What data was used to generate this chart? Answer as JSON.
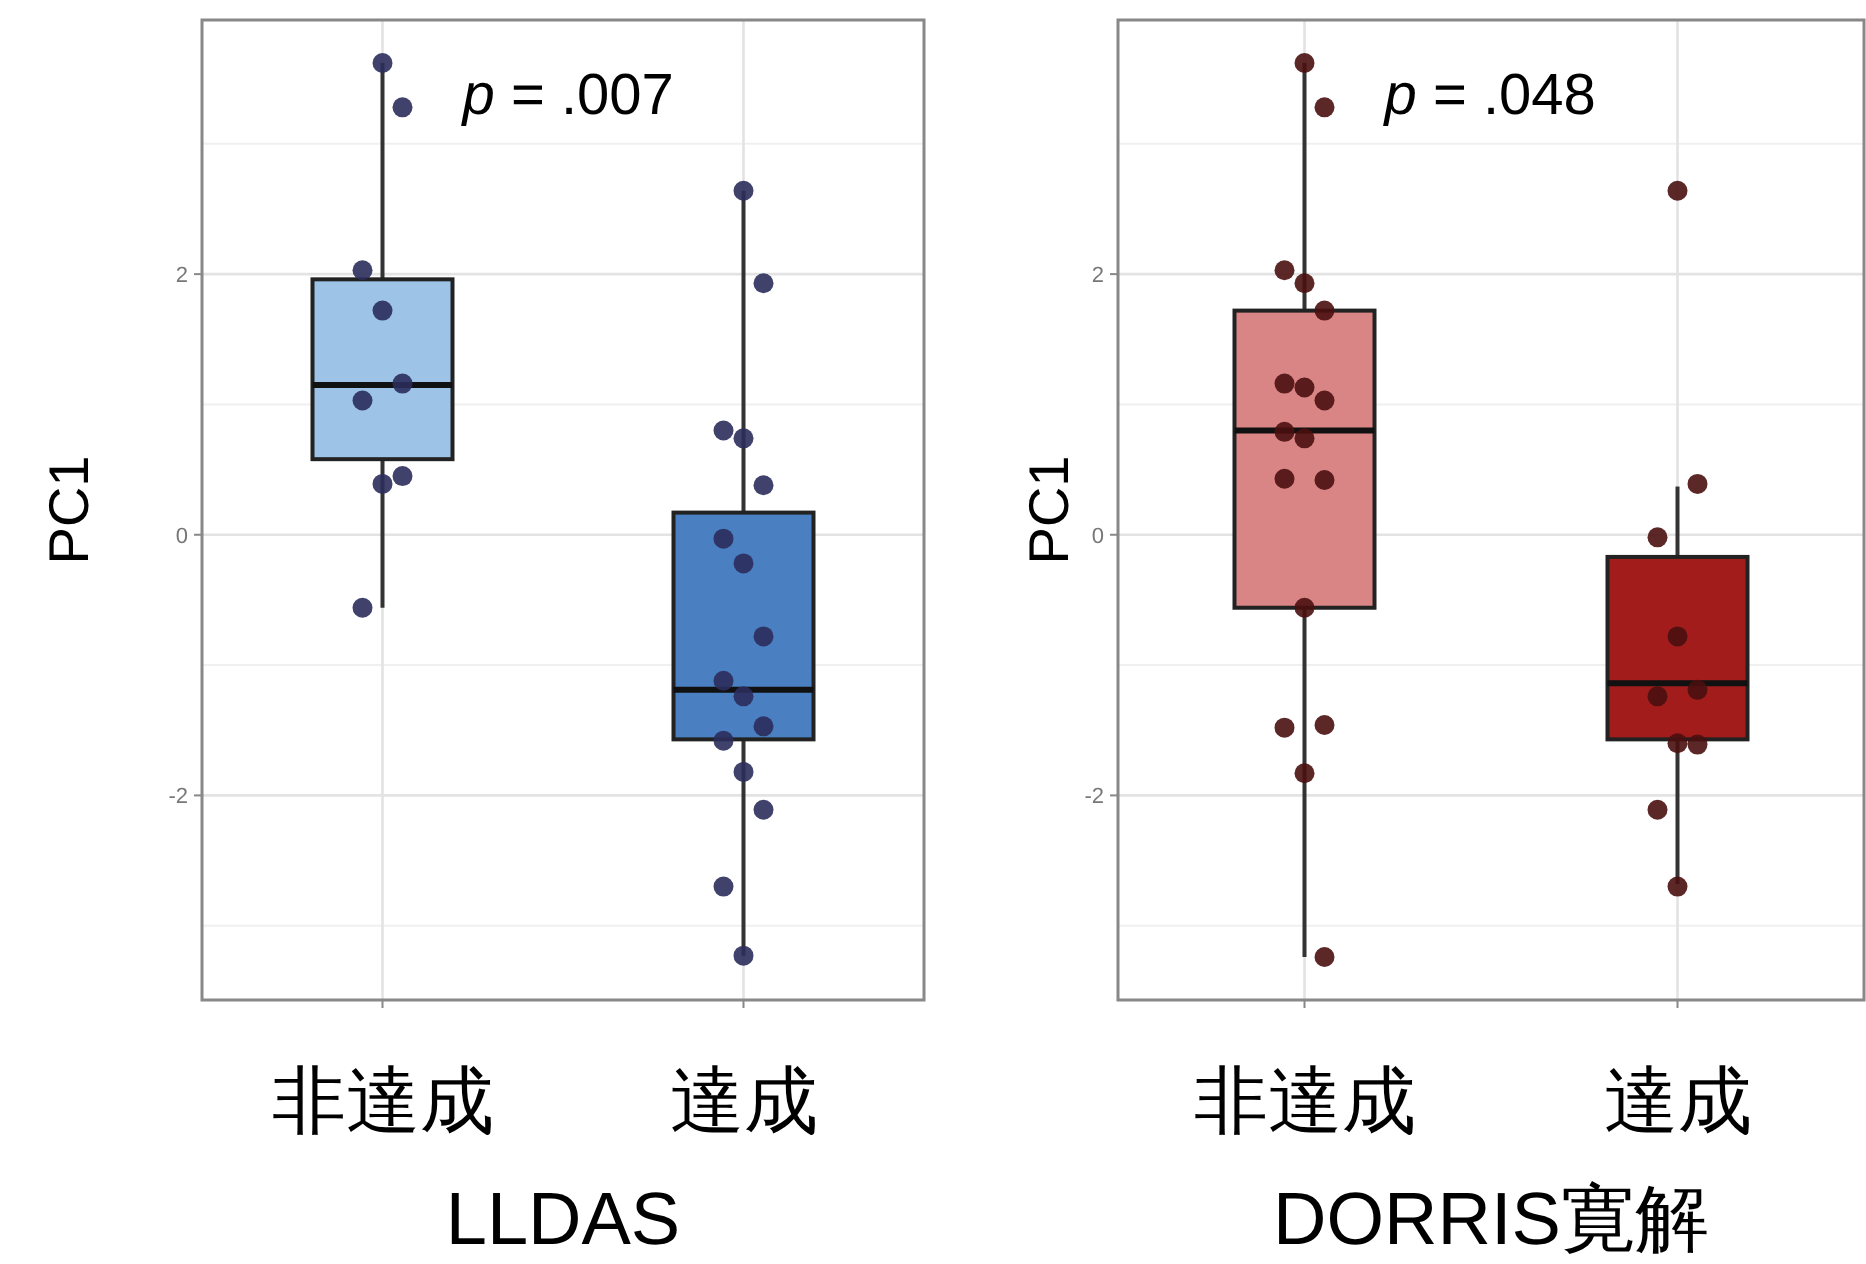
{
  "chart_data": [
    {
      "type": "box",
      "xlabel": "LLDAS",
      "ylabel": "PC1",
      "annotations": [
        "p = .007"
      ],
      "categories": [
        "非達成",
        "達成"
      ],
      "colors": [
        "#9dc3e6",
        "#4a7fc1"
      ],
      "grid": true,
      "ylim": [
        -3.57,
        3.95
      ],
      "yticks": [
        {
          "value": -3,
          "label": null
        },
        -2,
        {
          "value": -1,
          "label": null
        },
        0,
        {
          "value": 1,
          "label": null
        },
        2,
        {
          "value": 3,
          "label": null
        }
      ],
      "boxes": [
        {
          "low": -0.56,
          "q1": 0.58,
          "median": 1.15,
          "q3": 1.96,
          "high": 3.62
        },
        {
          "low": -3.23,
          "q1": -1.57,
          "median": -1.19,
          "q3": 0.17,
          "high": 2.64
        }
      ],
      "series": [
        {
          "type": "scatter",
          "color": "#2b2d5c",
          "x": [
            "非達成",
            "非達成",
            "非達成",
            "非達成",
            "非達成",
            "非達成",
            "非達成",
            "非達成",
            "非達成",
            "達成",
            "達成",
            "達成",
            "達成",
            "達成",
            "達成",
            "達成",
            "達成",
            "達成",
            "達成",
            "達成",
            "達成",
            "達成",
            "達成",
            "達成",
            "達成"
          ],
          "values": [
            3.62,
            3.28,
            2.03,
            1.72,
            1.16,
            1.03,
            0.39,
            0.45,
            -0.56,
            2.64,
            1.93,
            0.8,
            0.74,
            0.38,
            -0.03,
            -0.22,
            -0.78,
            -1.12,
            -1.24,
            -1.47,
            -1.58,
            -1.82,
            -2.11,
            -2.7,
            -3.23
          ]
        }
      ]
    },
    {
      "type": "box",
      "xlabel": "DORRIS寛解",
      "ylabel": "PC1",
      "annotations": [
        "p = .048"
      ],
      "categories": [
        "非達成",
        "達成"
      ],
      "colors": [
        "#d98585",
        "#a21c1c"
      ],
      "grid": true,
      "ylim": [
        -3.57,
        3.95
      ],
      "yticks": [
        {
          "value": -3,
          "label": null
        },
        -2,
        {
          "value": -1,
          "label": null
        },
        0,
        {
          "value": 1,
          "label": null
        },
        2,
        {
          "value": 3,
          "label": null
        }
      ],
      "boxes": [
        {
          "low": -3.24,
          "q1": -0.56,
          "median": 0.8,
          "q3": 1.72,
          "high": 3.62
        },
        {
          "low": -2.68,
          "q1": -1.57,
          "median": -1.14,
          "q3": -0.17,
          "high": 0.37
        }
      ],
      "series": [
        {
          "type": "scatter",
          "color": "#4a1010",
          "x": [
            "非達成",
            "非達成",
            "非達成",
            "非達成",
            "非達成",
            "非達成",
            "非達成",
            "非達成",
            "非達成",
            "非達成",
            "非達成",
            "非達成",
            "非達成",
            "非達成",
            "非達成",
            "非達成",
            "非達成",
            "達成",
            "達成",
            "達成",
            "達成",
            "達成",
            "達成",
            "達成",
            "達成",
            "達成",
            "達成"
          ],
          "values": [
            3.62,
            3.28,
            2.03,
            1.93,
            1.72,
            1.16,
            1.13,
            1.03,
            0.79,
            0.74,
            0.42,
            0.43,
            -0.56,
            -1.46,
            -1.48,
            -1.83,
            -3.24,
            2.64,
            0.39,
            -0.02,
            -0.78,
            -1.19,
            -1.24,
            -1.6,
            -1.61,
            -2.11,
            -2.7
          ]
        }
      ]
    }
  ]
}
